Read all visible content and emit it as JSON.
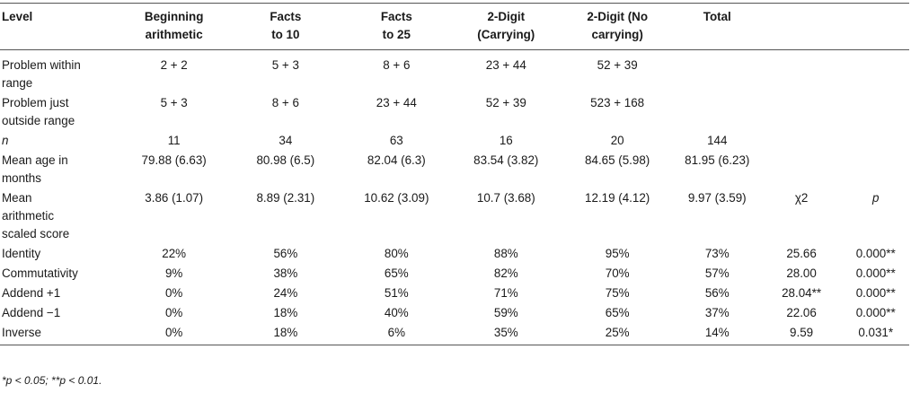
{
  "headers": [
    "Level",
    "Beginning arithmetic",
    "Facts to 10",
    "Facts to 25",
    "2-Digit (Carrying)",
    "2-Digit (No carrying)",
    "Total",
    "",
    ""
  ],
  "rows": [
    [
      "Problem within range",
      "2 + 2",
      "5 + 3",
      "8 + 6",
      "23 + 44",
      "52 + 39",
      "",
      "",
      ""
    ],
    [
      "Problem just outside range",
      "5 + 3",
      "8 + 6",
      "23 + 44",
      "52 + 39",
      "523 + 168",
      "",
      "",
      ""
    ],
    [
      "n",
      "11",
      "34",
      "63",
      "16",
      "20",
      "144",
      "",
      ""
    ],
    [
      "Mean age in months",
      "79.88 (6.63)",
      "80.98 (6.5)",
      "82.04 (6.3)",
      "83.54 (3.82)",
      "84.65 (5.98)",
      "81.95 (6.23)",
      "",
      ""
    ],
    [
      "Mean arithmetic scaled score",
      "3.86 (1.07)",
      "8.89 (2.31)",
      "10.62 (3.09)",
      "10.7 (3.68)",
      "12.19 (4.12)",
      "9.97 (3.59)",
      "χ2",
      "p"
    ],
    [
      "Identity",
      "22%",
      "56%",
      "80%",
      "88%",
      "95%",
      "73%",
      "25.66",
      "0.000**"
    ],
    [
      "Commutativity",
      "9%",
      "38%",
      "65%",
      "82%",
      "70%",
      "57%",
      "28.00",
      "0.000**"
    ],
    [
      "Addend +1",
      "0%",
      "24%",
      "51%",
      "71%",
      "75%",
      "56%",
      "28.04**",
      "0.000**"
    ],
    [
      "Addend −1",
      "0%",
      "18%",
      "40%",
      "59%",
      "65%",
      "37%",
      "22.06",
      "0.000**"
    ],
    [
      "Inverse",
      "0%",
      "18%",
      "6%",
      "35%",
      "25%",
      "14%",
      "9.59",
      "0.031*"
    ]
  ],
  "footnote": "*p < 0.05; **p < 0.01."
}
